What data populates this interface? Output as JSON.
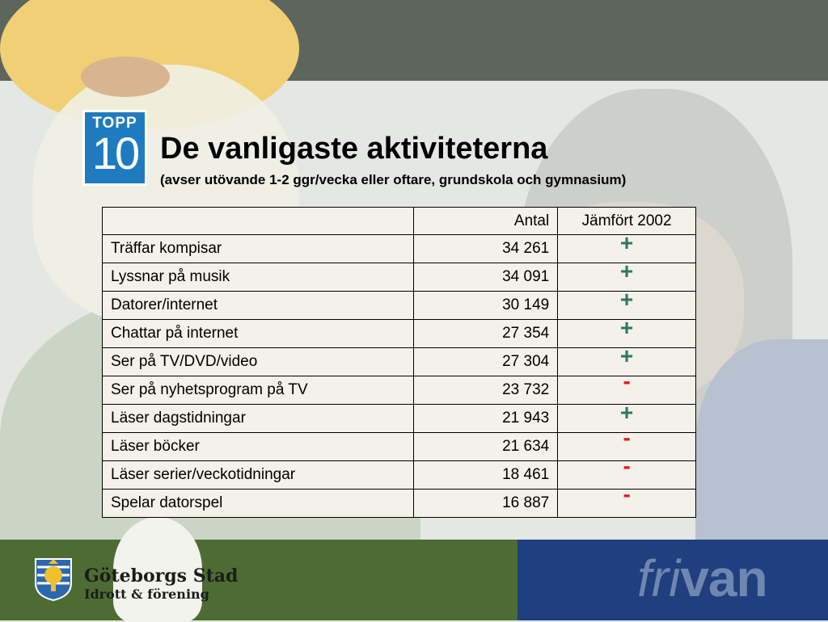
{
  "logo": {
    "line1": "TOPP",
    "line2": "10"
  },
  "title": "De vanligaste aktiviteterna",
  "subtitle": "(avser utövande 1-2 ggr/vecka eller oftare, grundskola och gymnasium)",
  "table": {
    "headers": [
      "",
      "Antal",
      "Jämfört 2002"
    ],
    "rows": [
      {
        "activity": "Träffar kompisar",
        "count": "34 261",
        "change": "+"
      },
      {
        "activity": "Lyssnar på musik",
        "count": "34 091",
        "change": "+"
      },
      {
        "activity": "Datorer/internet",
        "count": "30 149",
        "change": "+"
      },
      {
        "activity": "Chattar på internet",
        "count": "27 354",
        "change": "+"
      },
      {
        "activity": "Ser på TV/DVD/video",
        "count": "27 304",
        "change": "+"
      },
      {
        "activity": "Ser på nyhetsprogram på TV",
        "count": "23 732",
        "change": "-"
      },
      {
        "activity": "Läser dagstidningar",
        "count": "21 943",
        "change": "+"
      },
      {
        "activity": "Läser böcker",
        "count": "21 634",
        "change": "-"
      },
      {
        "activity": "Läser serier/veckotidningar",
        "count": "18 461",
        "change": "-"
      },
      {
        "activity": "Spelar datorspel",
        "count": "16 887",
        "change": "-"
      }
    ]
  },
  "footer": {
    "org_name": "Göteborgs Stad",
    "org_sub": "Idrott & förening",
    "brand_part1": "fri",
    "brand_part2": "van"
  },
  "colors": {
    "plus": "#2a7a62",
    "minus": "#e21b1b",
    "logo_blue": "#1f7bbf",
    "brand_text": "#6e87b1"
  }
}
